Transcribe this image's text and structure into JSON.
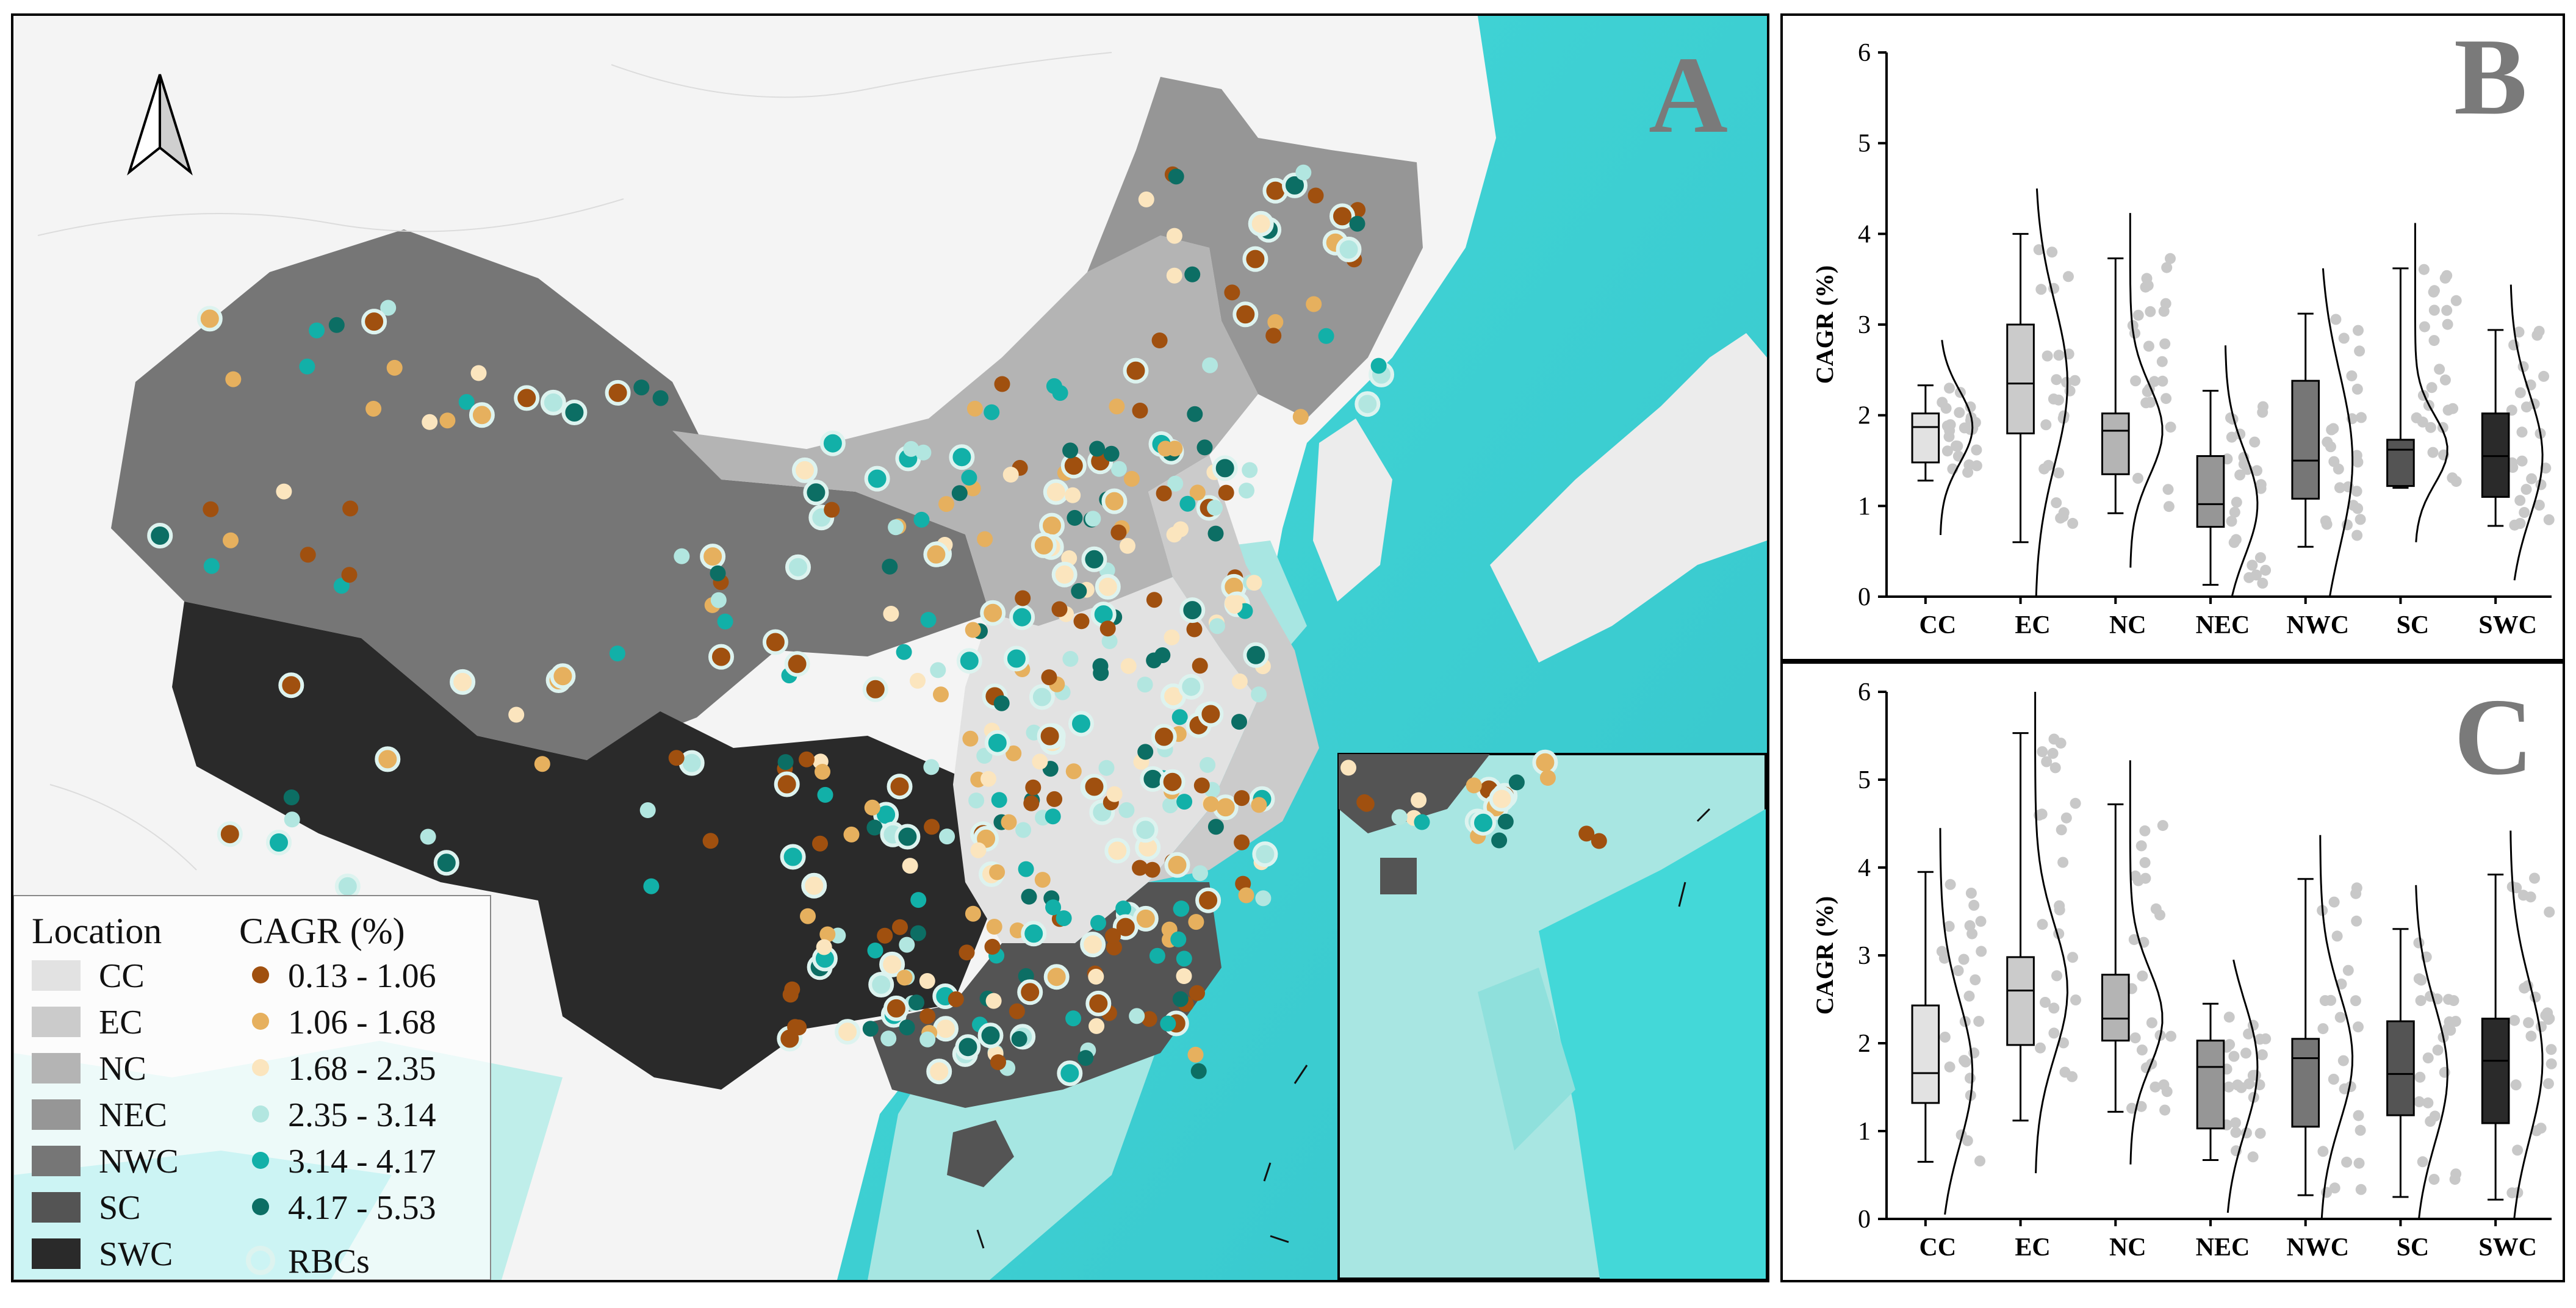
{
  "panel_a": {
    "letter": "A",
    "legend": {
      "location_title": "Location",
      "cagr_title": "CAGR (%)",
      "regions": [
        {
          "label": "CC",
          "color": "#e2e2e2"
        },
        {
          "label": "EC",
          "color": "#cbcbcb"
        },
        {
          "label": "NC",
          "color": "#b4b4b4"
        },
        {
          "label": "NEC",
          "color": "#969696"
        },
        {
          "label": "NWC",
          "color": "#767676"
        },
        {
          "label": "SC",
          "color": "#545454"
        },
        {
          "label": "SWC",
          "color": "#2a2a2a"
        }
      ],
      "classes": [
        {
          "label": "0.13 - 1.06",
          "color": "#a0500f"
        },
        {
          "label": "1.06 - 1.68",
          "color": "#e6b05e"
        },
        {
          "label": "1.68 - 2.35",
          "color": "#fbe5be"
        },
        {
          "label": "2.35 - 3.14",
          "color": "#b2e6e0"
        },
        {
          "label": "3.14 - 4.17",
          "color": "#12b0a8"
        },
        {
          "label": "4.17 - 5.53",
          "color": "#0c6e64"
        }
      ],
      "rbc_label": "RBCs"
    }
  },
  "panel_b": {
    "letter": "B",
    "chart_data": {
      "type": "box",
      "ylabel": "CAGR (%)",
      "ylim": [
        0,
        6
      ],
      "yticks": [
        "0",
        "1",
        "2",
        "3",
        "4",
        "5",
        "6"
      ],
      "categories": [
        "CC",
        "EC",
        "NC",
        "NEC",
        "NWC",
        "SC",
        "SWC"
      ],
      "colors": [
        "#e2e2e2",
        "#cbcbcb",
        "#b4b4b4",
        "#969696",
        "#767676",
        "#545454",
        "#2a2a2a"
      ],
      "boxes": [
        {
          "min": 1.28,
          "q1": 1.48,
          "median": 1.87,
          "q3": 2.02,
          "max": 2.33
        },
        {
          "min": 0.6,
          "q1": 1.8,
          "median": 2.35,
          "q3": 3.0,
          "max": 4.0
        },
        {
          "min": 0.92,
          "q1": 1.35,
          "median": 1.83,
          "q3": 2.02,
          "max": 3.73
        },
        {
          "min": 0.13,
          "q1": 0.77,
          "median": 1.02,
          "q3": 1.55,
          "max": 2.27
        },
        {
          "min": 0.55,
          "q1": 1.08,
          "median": 1.5,
          "q3": 2.38,
          "max": 3.12
        },
        {
          "min": 1.2,
          "q1": 1.22,
          "median": 1.62,
          "q3": 1.73,
          "max": 3.62
        },
        {
          "min": 0.78,
          "q1": 1.1,
          "median": 1.55,
          "q3": 2.02,
          "max": 2.94
        }
      ]
    }
  },
  "panel_c": {
    "letter": "C",
    "chart_data": {
      "type": "box",
      "ylabel": "CAGR (%)",
      "ylim": [
        0,
        6
      ],
      "yticks": [
        "0",
        "1",
        "2",
        "3",
        "4",
        "5",
        "6"
      ],
      "categories": [
        "CC",
        "EC",
        "NC",
        "NEC",
        "NWC",
        "SC",
        "SWC"
      ],
      "colors": [
        "#e2e2e2",
        "#cbcbcb",
        "#b4b4b4",
        "#969696",
        "#767676",
        "#545454",
        "#2a2a2a"
      ],
      "boxes": [
        {
          "min": 0.65,
          "q1": 1.32,
          "median": 1.66,
          "q3": 2.43,
          "max": 3.95
        },
        {
          "min": 1.12,
          "q1": 1.98,
          "median": 2.6,
          "q3": 2.98,
          "max": 5.53
        },
        {
          "min": 1.22,
          "q1": 2.03,
          "median": 2.28,
          "q3": 2.78,
          "max": 4.72
        },
        {
          "min": 0.67,
          "q1": 1.03,
          "median": 1.73,
          "q3": 2.03,
          "max": 2.45
        },
        {
          "min": 0.27,
          "q1": 1.05,
          "median": 1.83,
          "q3": 2.05,
          "max": 3.87
        },
        {
          "min": 0.25,
          "q1": 1.18,
          "median": 1.65,
          "q3": 2.25,
          "max": 3.3
        },
        {
          "min": 0.22,
          "q1": 1.09,
          "median": 1.8,
          "q3": 2.28,
          "max": 3.92
        }
      ]
    }
  }
}
